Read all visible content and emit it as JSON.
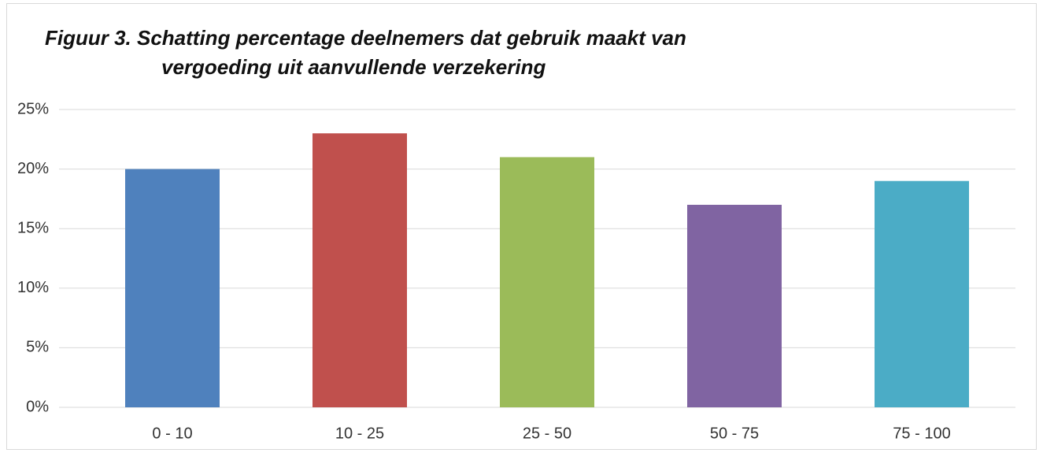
{
  "chart_data": {
    "type": "bar",
    "title": [
      "Figuur 3. Schatting percentage deelnemers dat gebruik maakt van",
      "vergoeding uit aanvullende verzekering"
    ],
    "categories": [
      "0 - 10",
      "10 - 25",
      "25 - 50",
      "50 - 75",
      "75 - 100"
    ],
    "values": [
      20,
      23,
      21,
      17,
      19
    ],
    "colors": [
      "#4f81bd",
      "#c0504d",
      "#9bbb59",
      "#8064a2",
      "#4bacc6"
    ],
    "ylim": [
      0,
      25
    ],
    "yticks": [
      {
        "value": 0,
        "label": "0%"
      },
      {
        "value": 5,
        "label": "5%"
      },
      {
        "value": 10,
        "label": "10%"
      },
      {
        "value": 15,
        "label": "15%"
      },
      {
        "value": 20,
        "label": "20%"
      },
      {
        "value": 25,
        "label": "25%"
      }
    ],
    "grid": true
  }
}
